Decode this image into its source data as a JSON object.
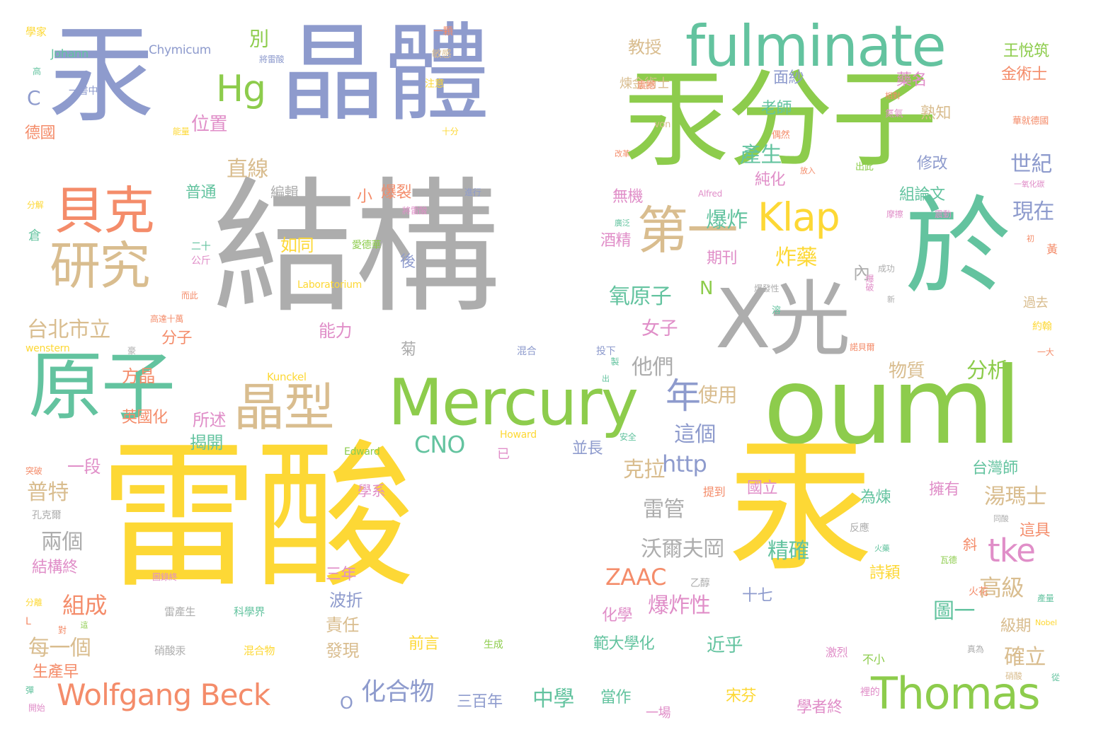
{
  "palette": {
    "yellow": "#fdd835",
    "green": "#8dcc4c",
    "teal": "#63c39f",
    "blue": "#8e9bcd",
    "gray": "#adadad",
    "orange": "#f48c6a",
    "tan": "#d9bd8f",
    "pink": "#e08ec8"
  },
  "words": [
    {
      "t": "汞",
      "c": "blue"
    },
    {
      "t": "晶體",
      "c": "blue"
    },
    {
      "t": "fulminate",
      "c": "teal"
    },
    {
      "t": "汞分子",
      "c": "green"
    },
    {
      "t": "結構",
      "c": "gray"
    },
    {
      "t": "於",
      "c": "teal"
    },
    {
      "t": "X光",
      "c": "gray"
    },
    {
      "t": "ouml",
      "c": "green"
    },
    {
      "t": "雷酸",
      "c": "yellow"
    },
    {
      "t": "汞",
      "c": "yellow"
    },
    {
      "t": "原子",
      "c": "teal"
    },
    {
      "t": "Mercury",
      "c": "green"
    },
    {
      "t": "貝克",
      "c": "orange"
    },
    {
      "t": "研究",
      "c": "tan"
    },
    {
      "t": "晶型",
      "c": "tan"
    },
    {
      "t": "第一",
      "c": "tan"
    },
    {
      "t": "Klap",
      "c": "yellow"
    },
    {
      "t": "Hg",
      "c": "green"
    },
    {
      "t": "Thomas",
      "c": "green"
    },
    {
      "t": "tke",
      "c": "pink"
    },
    {
      "t": "Wolfgang Beck",
      "c": "orange"
    },
    {
      "t": "年",
      "c": "blue"
    },
    {
      "t": "台北市立",
      "c": "tan"
    },
    {
      "t": "化合物",
      "c": "blue"
    },
    {
      "t": "沃爾夫岡",
      "c": "gray"
    },
    {
      "t": "湯瑪士",
      "c": "tan"
    },
    {
      "t": "爆炸性",
      "c": "pink"
    },
    {
      "t": "ZAAC",
      "c": "orange"
    },
    {
      "t": "CNO",
      "c": "teal"
    },
    {
      "t": "http",
      "c": "blue"
    },
    {
      "t": "雷管",
      "c": "gray"
    },
    {
      "t": "高級",
      "c": "tan"
    },
    {
      "t": "中學",
      "c": "teal"
    },
    {
      "t": "組成",
      "c": "orange"
    },
    {
      "t": "每一個",
      "c": "tan"
    },
    {
      "t": "兩個",
      "c": "gray"
    },
    {
      "t": "普特",
      "c": "tan"
    },
    {
      "t": "位置",
      "c": "pink"
    },
    {
      "t": "直線",
      "c": "tan"
    },
    {
      "t": "爆炸",
      "c": "teal"
    },
    {
      "t": "炸藥",
      "c": "yellow"
    },
    {
      "t": "氧原子",
      "c": "teal"
    },
    {
      "t": "女子",
      "c": "pink"
    },
    {
      "t": "他們",
      "c": "gray"
    },
    {
      "t": "分析",
      "c": "green"
    },
    {
      "t": "物質",
      "c": "tan"
    },
    {
      "t": "使用",
      "c": "tan"
    },
    {
      "t": "這個",
      "c": "blue"
    },
    {
      "t": "克拉",
      "c": "tan"
    },
    {
      "t": "產生",
      "c": "teal"
    },
    {
      "t": "世紀",
      "c": "blue"
    },
    {
      "t": "現在",
      "c": "blue"
    },
    {
      "t": "精確",
      "c": "teal"
    },
    {
      "t": "確立",
      "c": "tan"
    },
    {
      "t": "圖一",
      "c": "teal"
    },
    {
      "t": "期刊",
      "c": "pink"
    },
    {
      "t": "能力",
      "c": "pink"
    },
    {
      "t": "如同",
      "c": "yellow"
    },
    {
      "t": "方晶",
      "c": "orange"
    },
    {
      "t": "英國化",
      "c": "orange"
    },
    {
      "t": "揭開",
      "c": "teal"
    },
    {
      "t": "所述",
      "c": "pink"
    },
    {
      "t": "一段",
      "c": "pink"
    },
    {
      "t": "結構終",
      "c": "pink"
    },
    {
      "t": "生產早",
      "c": "orange"
    },
    {
      "t": "台灣師",
      "c": "teal"
    },
    {
      "t": "國立",
      "c": "pink"
    },
    {
      "t": "擁有",
      "c": "pink"
    },
    {
      "t": "為煉",
      "c": "teal"
    },
    {
      "t": "這具",
      "c": "orange"
    },
    {
      "t": "詩穎",
      "c": "yellow"
    },
    {
      "t": "範大學化",
      "c": "teal"
    },
    {
      "t": "近乎",
      "c": "teal"
    },
    {
      "t": "化學",
      "c": "pink"
    },
    {
      "t": "責任",
      "c": "tan"
    },
    {
      "t": "發現",
      "c": "tan"
    },
    {
      "t": "波折",
      "c": "blue"
    },
    {
      "t": "三年",
      "c": "pink"
    },
    {
      "t": "前言",
      "c": "yellow"
    },
    {
      "t": "宋芬",
      "c": "yellow"
    },
    {
      "t": "學者終",
      "c": "pink"
    },
    {
      "t": "三百年",
      "c": "blue"
    },
    {
      "t": "當作",
      "c": "teal"
    },
    {
      "t": "一場",
      "c": "pink"
    },
    {
      "t": "教授",
      "c": "tan"
    },
    {
      "t": "煉金術士",
      "c": "tan"
    },
    {
      "t": "面紗",
      "c": "blue"
    },
    {
      "t": "老師",
      "c": "teal"
    },
    {
      "t": "純化",
      "c": "pink"
    },
    {
      "t": "組論文",
      "c": "teal"
    },
    {
      "t": "修改",
      "c": "blue"
    },
    {
      "t": "熟知",
      "c": "tan"
    },
    {
      "t": "藥名",
      "c": "pink"
    },
    {
      "t": "金術士",
      "c": "orange"
    },
    {
      "t": "王悅筑",
      "c": "green"
    },
    {
      "t": "別",
      "c": "green"
    },
    {
      "t": "C",
      "c": "blue"
    },
    {
      "t": "N",
      "c": "green"
    },
    {
      "t": "O",
      "c": "blue"
    },
    {
      "t": "無機",
      "c": "pink"
    },
    {
      "t": "酒精",
      "c": "pink"
    },
    {
      "t": "爆裂",
      "c": "orange"
    },
    {
      "t": "小",
      "c": "orange"
    },
    {
      "t": "普通",
      "c": "teal"
    },
    {
      "t": "編輯",
      "c": "gray"
    },
    {
      "t": "後",
      "c": "blue"
    },
    {
      "t": "分子",
      "c": "orange"
    },
    {
      "t": "菊",
      "c": "gray"
    },
    {
      "t": "內",
      "c": "gray"
    },
    {
      "t": "十七",
      "c": "blue"
    },
    {
      "t": "並長",
      "c": "blue"
    },
    {
      "t": "級期",
      "c": "tan"
    },
    {
      "t": "不小",
      "c": "green"
    },
    {
      "t": "激烈",
      "c": "pink"
    },
    {
      "t": "過去",
      "c": "tan"
    },
    {
      "t": "約翰",
      "c": "yellow"
    },
    {
      "t": "黃",
      "c": "orange"
    },
    {
      "t": "斜",
      "c": "orange"
    },
    {
      "t": "已",
      "c": "pink"
    },
    {
      "t": "學系",
      "c": "pink"
    },
    {
      "t": "提到",
      "c": "orange"
    },
    {
      "t": "孔克爾",
      "c": "gray"
    },
    {
      "t": "反應",
      "c": "gray"
    },
    {
      "t": "德國",
      "c": "orange"
    },
    {
      "t": "倉",
      "c": "teal"
    },
    {
      "t": "學家",
      "c": "yellow"
    },
    {
      "t": "Johann",
      "c": "teal"
    },
    {
      "t": "Chymicum",
      "c": "blue"
    },
    {
      "t": "一顆",
      "c": "orange"
    },
    {
      "t": "敏感",
      "c": "tan"
    },
    {
      "t": "高",
      "c": "teal"
    },
    {
      "t": "一書中",
      "c": "blue"
    },
    {
      "t": "將雷酸",
      "c": "blue"
    },
    {
      "t": "注意",
      "c": "yellow"
    },
    {
      "t": "震撼",
      "c": "orange"
    },
    {
      "t": "能量",
      "c": "yellow"
    },
    {
      "t": "十分",
      "c": "yellow"
    },
    {
      "t": "von",
      "c": "tan"
    },
    {
      "t": "改革",
      "c": "orange"
    },
    {
      "t": "相對",
      "c": "orange"
    },
    {
      "t": "氮氣",
      "c": "pink"
    },
    {
      "t": "偶然",
      "c": "orange"
    },
    {
      "t": "華就德國",
      "c": "orange"
    },
    {
      "t": "放入",
      "c": "orange"
    },
    {
      "t": "出此",
      "c": "green"
    },
    {
      "t": "進行",
      "c": "blue"
    },
    {
      "t": "Alfred",
      "c": "pink"
    },
    {
      "t": "一氧化碳",
      "c": "pink"
    },
    {
      "t": "摩擦",
      "c": "pink"
    },
    {
      "t": "震動",
      "c": "pink"
    },
    {
      "t": "初",
      "c": "orange"
    },
    {
      "t": "分解",
      "c": "yellow"
    },
    {
      "t": "將雷酸",
      "c": "pink"
    },
    {
      "t": "愛德華",
      "c": "green"
    },
    {
      "t": "廣泛",
      "c": "teal"
    },
    {
      "t": "二十",
      "c": "teal"
    },
    {
      "t": "公斤",
      "c": "pink"
    },
    {
      "t": "而此",
      "c": "orange"
    },
    {
      "t": "高達十萬",
      "c": "orange"
    },
    {
      "t": "Laboratorium",
      "c": "yellow"
    },
    {
      "t": "成功",
      "c": "gray"
    },
    {
      "t": "爆發性",
      "c": "gray"
    },
    {
      "t": "爆破",
      "c": "pink"
    },
    {
      "t": "新",
      "c": "gray"
    },
    {
      "t": "溶",
      "c": "teal"
    },
    {
      "t": "諾貝爾",
      "c": "orange"
    },
    {
      "t": "一大",
      "c": "orange"
    },
    {
      "t": "wenstern",
      "c": "yellow"
    },
    {
      "t": "豪",
      "c": "gray"
    },
    {
      "t": "混合",
      "c": "blue"
    },
    {
      "t": "投下",
      "c": "blue"
    },
    {
      "t": "製",
      "c": "teal"
    },
    {
      "t": "出",
      "c": "teal"
    },
    {
      "t": "Kunckel",
      "c": "yellow"
    },
    {
      "t": "Howard",
      "c": "yellow"
    },
    {
      "t": "安全",
      "c": "teal"
    },
    {
      "t": "Edward",
      "c": "green"
    },
    {
      "t": "突破",
      "c": "orange"
    },
    {
      "t": "同酸",
      "c": "gray"
    },
    {
      "t": "瓦德",
      "c": "green"
    },
    {
      "t": "火藥",
      "c": "teal"
    },
    {
      "t": "圖錄終",
      "c": "pink"
    },
    {
      "t": "乙醇",
      "c": "gray"
    },
    {
      "t": "火花",
      "c": "orange"
    },
    {
      "t": "產量",
      "c": "teal"
    },
    {
      "t": "分離",
      "c": "yellow"
    },
    {
      "t": "L",
      "c": "orange"
    },
    {
      "t": "對",
      "c": "orange"
    },
    {
      "t": "這",
      "c": "green"
    },
    {
      "t": "雷產生",
      "c": "gray"
    },
    {
      "t": "科學界",
      "c": "teal"
    },
    {
      "t": "Nobel",
      "c": "yellow"
    },
    {
      "t": "生成",
      "c": "green"
    },
    {
      "t": "硝酸汞",
      "c": "gray"
    },
    {
      "t": "混合物",
      "c": "yellow"
    },
    {
      "t": "裡的",
      "c": "pink"
    },
    {
      "t": "真為",
      "c": "gray"
    },
    {
      "t": "硝酸",
      "c": "tan"
    },
    {
      "t": "從",
      "c": "teal"
    },
    {
      "t": "彈",
      "c": "teal"
    },
    {
      "t": "開始",
      "c": "pink"
    }
  ]
}
